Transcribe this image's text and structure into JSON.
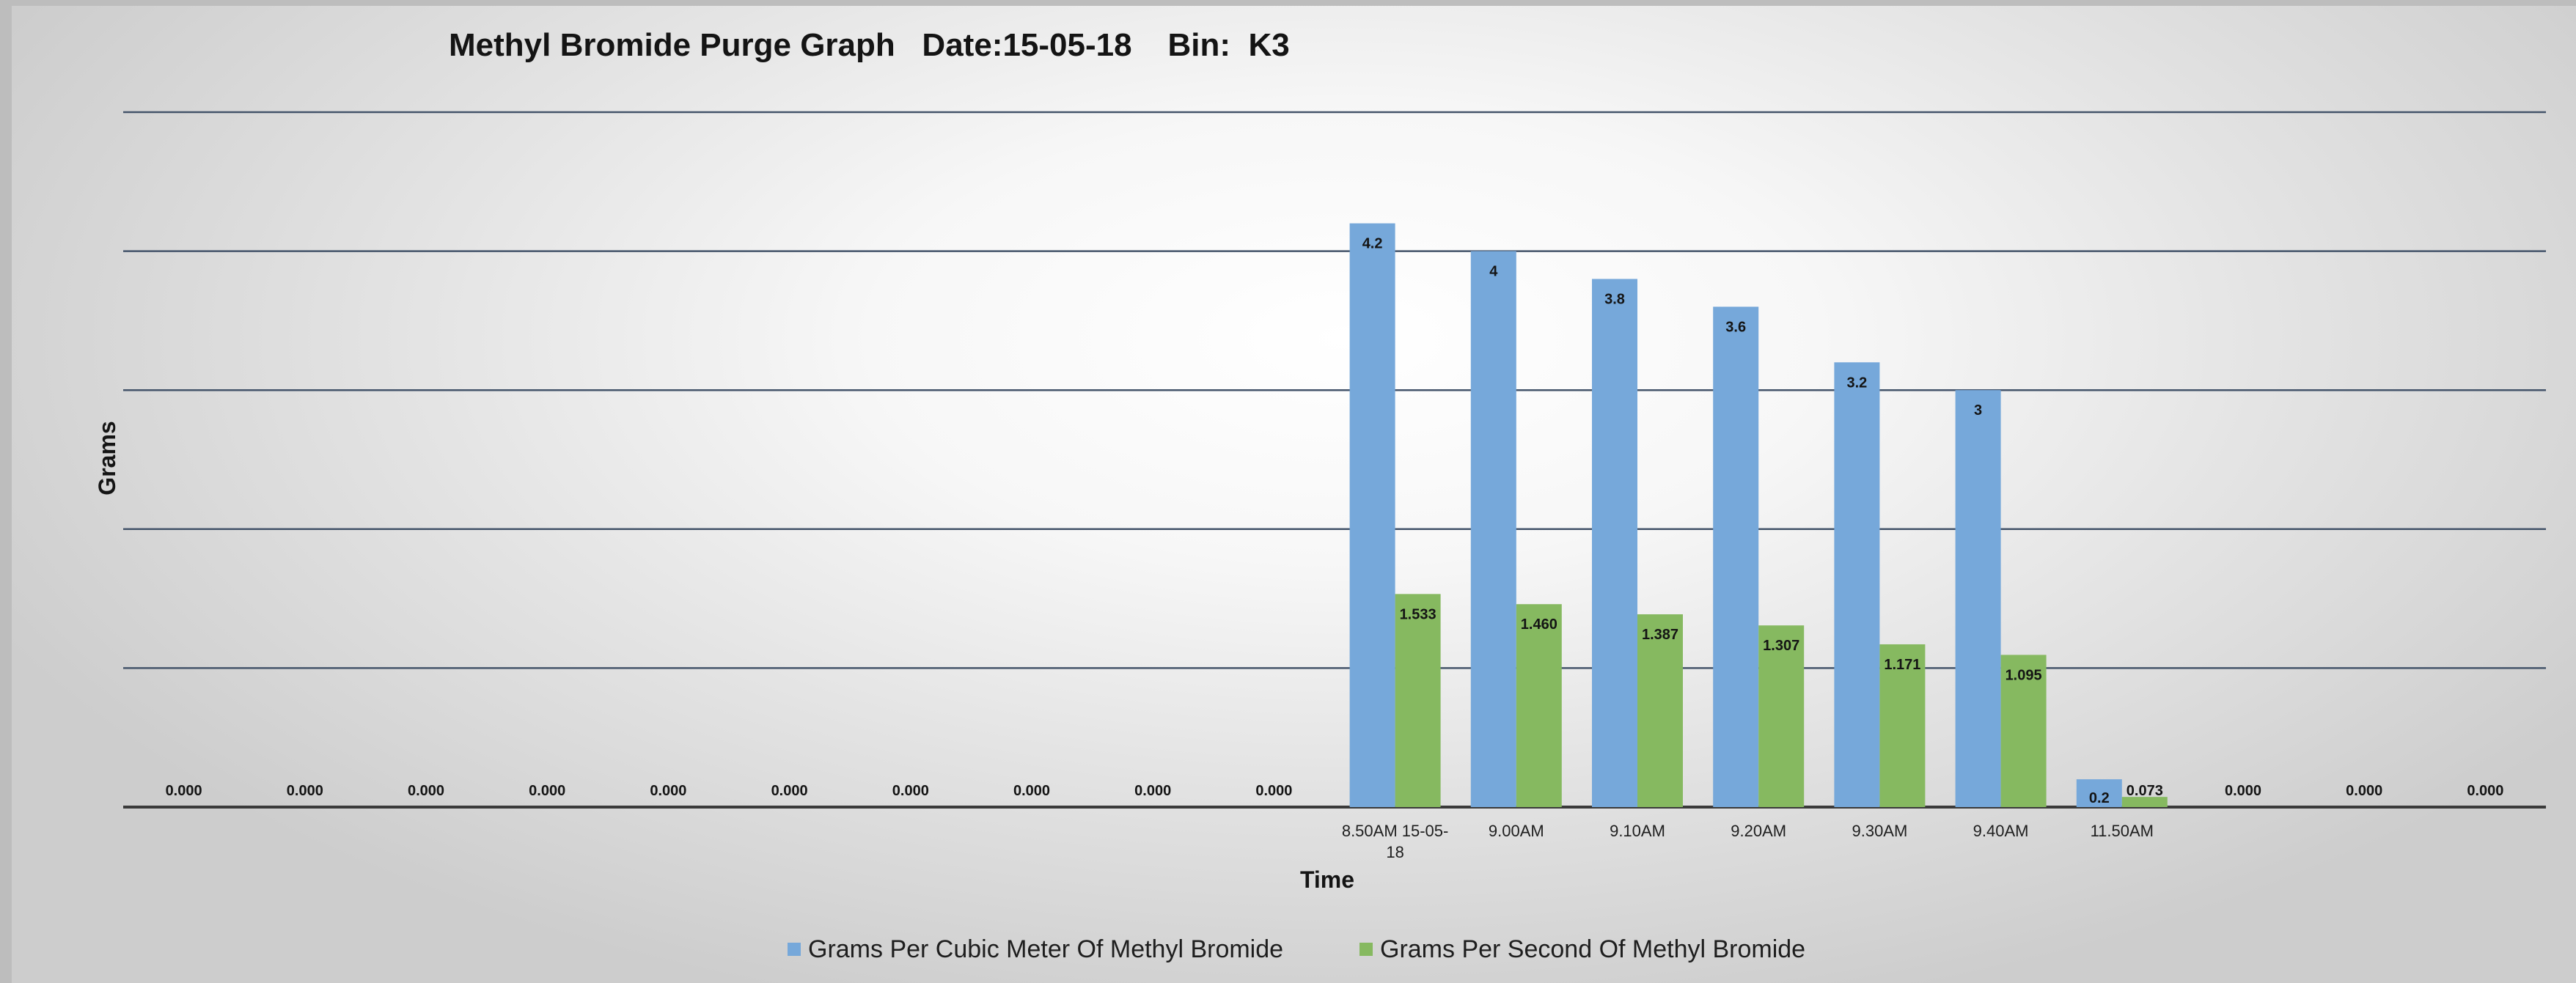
{
  "colors": {
    "series_1": "#76a8da",
    "series_2": "#86b960"
  },
  "chart_data": {
    "type": "bar",
    "title": "Methyl Bromide Purge Graph   Date:15-05-18    Bin:  K3",
    "xlabel": "Time",
    "ylabel": "Grams",
    "ylim": [
      0,
      5
    ],
    "grid": true,
    "legend_position": "bottom",
    "categories": [
      "",
      "",
      "",
      "",
      "",
      "",
      "",
      "",
      "",
      "",
      "8.50AM 15-05-18",
      "9.00AM",
      "9.10AM",
      "9.20AM",
      "9.30AM",
      "9.40AM",
      "11.50AM",
      "",
      "",
      ""
    ],
    "series": [
      {
        "name": "Grams Per Cubic Meter Of Methyl Bromide",
        "values": [
          null,
          null,
          null,
          null,
          null,
          null,
          null,
          null,
          null,
          null,
          4.2,
          4,
          3.8,
          3.6,
          3.2,
          3,
          0.2,
          null,
          null,
          null
        ],
        "labels": [
          "",
          "",
          "",
          "",
          "",
          "",
          "",
          "",
          "",
          "",
          "4.2",
          "4",
          "3.8",
          "3.6",
          "3.2",
          "3",
          "0.2",
          "",
          "",
          ""
        ]
      },
      {
        "name": "Grams Per Second Of Methyl Bromide",
        "values": [
          0,
          0,
          0,
          0,
          0,
          0,
          0,
          0,
          0,
          0,
          1.533,
          1.46,
          1.387,
          1.307,
          1.171,
          1.095,
          0.073,
          0,
          0,
          0
        ],
        "labels": [
          "0.000",
          "0.000",
          "0.000",
          "0.000",
          "0.000",
          "0.000",
          "0.000",
          "0.000",
          "0.000",
          "0.000",
          "1.533",
          "1.460",
          "1.387",
          "1.307",
          "1.171",
          "1.095",
          "0.073",
          "0.000",
          "0.000",
          "0.000"
        ]
      }
    ]
  }
}
